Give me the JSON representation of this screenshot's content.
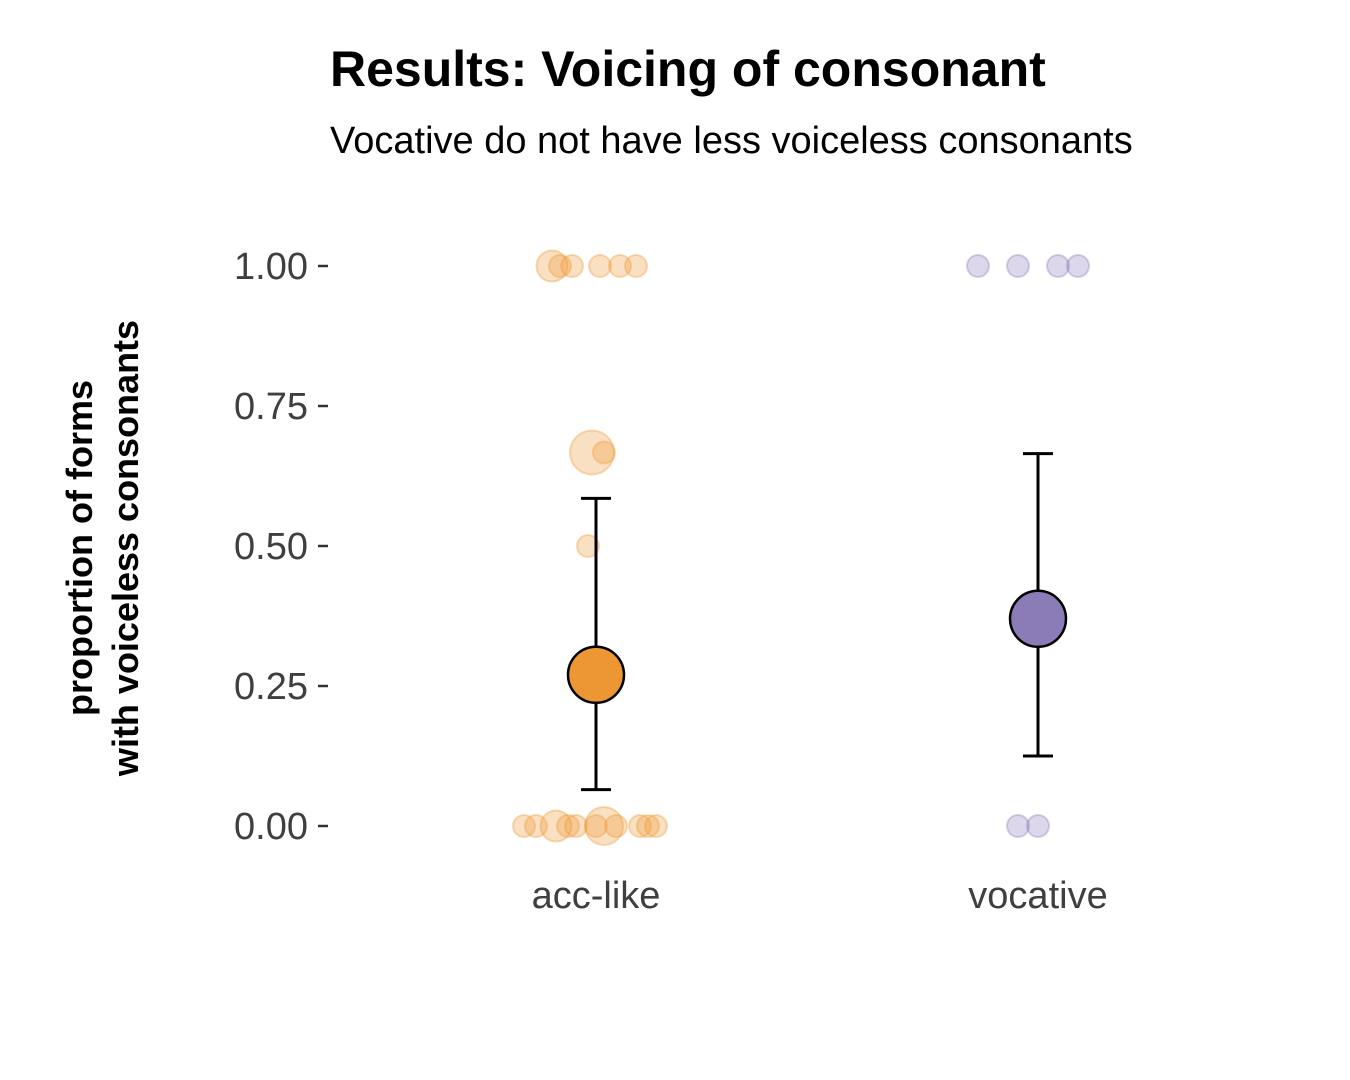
{
  "chart_data": {
    "type": "scatter",
    "title": "Results: Voicing of consonant",
    "subtitle": "Vocative do not have less voiceless consonants",
    "ylabel_lines": [
      "proportion of forms",
      "with voiceless consonants"
    ],
    "xlabel": "",
    "categories": [
      "acc-like",
      "vocative"
    ],
    "ylim": [
      0,
      1
    ],
    "yticks": [
      0,
      0.25,
      0.5,
      0.75,
      1
    ],
    "ytick_labels": [
      "0.00",
      "0.25",
      "0.50",
      "0.75",
      "1.00"
    ],
    "grid": false,
    "legend": "none",
    "colors": {
      "acc-like": "#ED9734",
      "vocative": "#8B7CB8"
    },
    "series": [
      {
        "category": "acc-like",
        "mean": 0.27,
        "ci": [
          0.065,
          0.585
        ],
        "observations": [
          {
            "x_jitter": -0.11,
            "y": 1.0,
            "size": 2
          },
          {
            "x_jitter": -0.06,
            "y": 1.0,
            "size": 1
          },
          {
            "x_jitter": -0.09,
            "y": 1.0,
            "size": 1
          },
          {
            "x_jitter": 0.01,
            "y": 1.0,
            "size": 1
          },
          {
            "x_jitter": 0.06,
            "y": 1.0,
            "size": 1
          },
          {
            "x_jitter": 0.1,
            "y": 1.0,
            "size": 1
          },
          {
            "x_jitter": -0.01,
            "y": 0.667,
            "size": 4
          },
          {
            "x_jitter": 0.02,
            "y": 0.667,
            "size": 1
          },
          {
            "x_jitter": -0.02,
            "y": 0.5,
            "size": 1
          },
          {
            "x_jitter": -0.18,
            "y": 0.0,
            "size": 1
          },
          {
            "x_jitter": -0.15,
            "y": 0.0,
            "size": 1
          },
          {
            "x_jitter": -0.1,
            "y": 0.0,
            "size": 2
          },
          {
            "x_jitter": -0.07,
            "y": 0.0,
            "size": 1
          },
          {
            "x_jitter": -0.05,
            "y": 0.0,
            "size": 1
          },
          {
            "x_jitter": 0.0,
            "y": 0.0,
            "size": 1
          },
          {
            "x_jitter": 0.02,
            "y": 0.0,
            "size": 3
          },
          {
            "x_jitter": 0.05,
            "y": 0.0,
            "size": 1
          },
          {
            "x_jitter": 0.11,
            "y": 0.0,
            "size": 1
          },
          {
            "x_jitter": 0.13,
            "y": 0.0,
            "size": 1
          },
          {
            "x_jitter": 0.15,
            "y": 0.0,
            "size": 1
          }
        ]
      },
      {
        "category": "vocative",
        "mean": 0.37,
        "ci": [
          0.125,
          0.665
        ],
        "observations": [
          {
            "x_jitter": -0.15,
            "y": 1.0,
            "size": 1
          },
          {
            "x_jitter": -0.05,
            "y": 1.0,
            "size": 1
          },
          {
            "x_jitter": 0.05,
            "y": 1.0,
            "size": 1
          },
          {
            "x_jitter": 0.1,
            "y": 1.0,
            "size": 1
          },
          {
            "x_jitter": -0.05,
            "y": 0.0,
            "size": 1
          },
          {
            "x_jitter": 0.0,
            "y": 0.0,
            "size": 1
          }
        ]
      }
    ]
  }
}
